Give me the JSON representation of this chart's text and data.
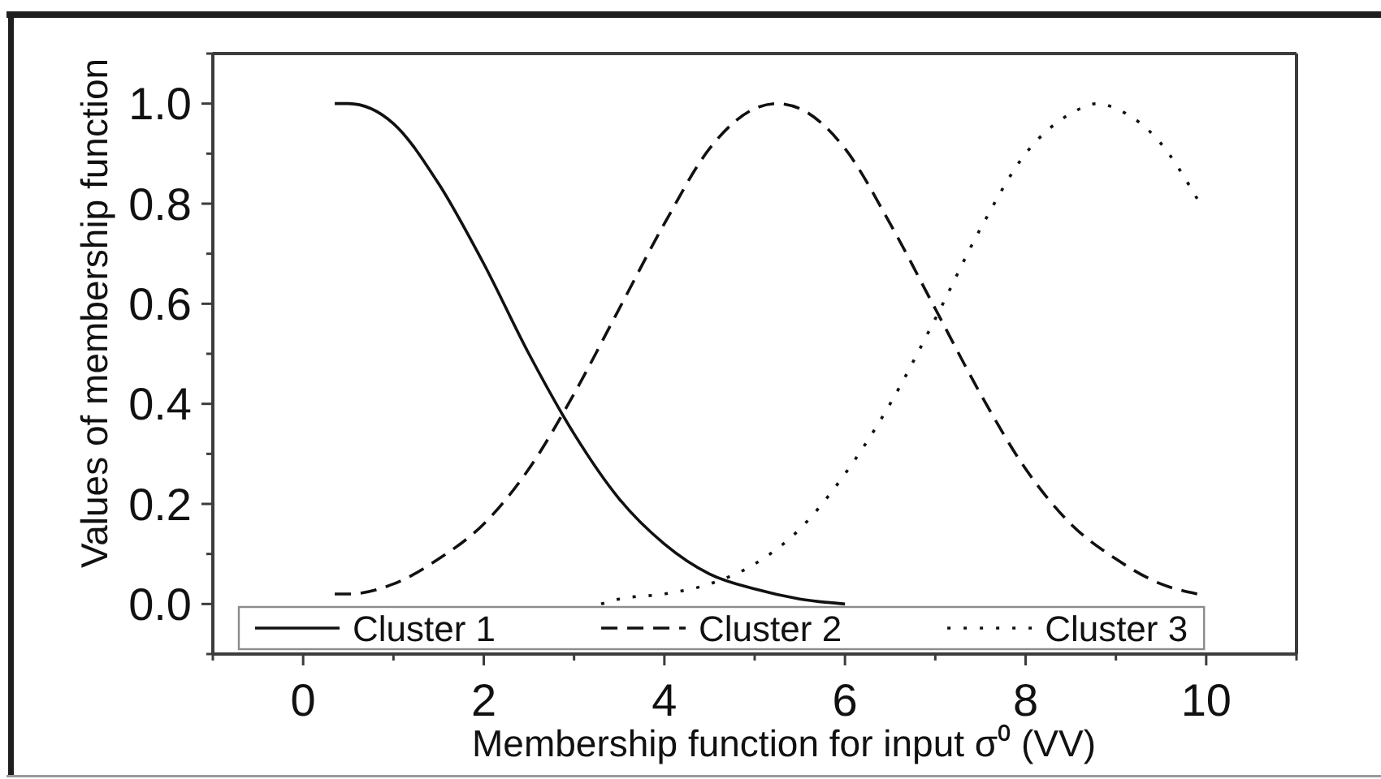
{
  "chart_data": {
    "type": "line",
    "xlabel": "Membership function for input σ⁰ (VV)",
    "ylabel": "Values of membership function",
    "xlim": [
      -1,
      11
    ],
    "xticks": [
      {
        "value": -1,
        "label": null
      },
      0,
      {
        "value": 1,
        "label": null
      },
      2,
      {
        "value": 3,
        "label": null
      },
      4,
      {
        "value": 5,
        "label": null
      },
      6,
      {
        "value": 7,
        "label": null
      },
      8,
      {
        "value": 9,
        "label": null
      },
      10,
      {
        "value": 11,
        "label": null
      }
    ],
    "ylim": [
      -0.1,
      1.1
    ],
    "yticks": [
      {
        "value": -0.1,
        "label": null
      },
      {
        "value": 0,
        "label": "0.0"
      },
      {
        "value": 0.1,
        "label": null
      },
      0.2,
      {
        "value": 0.3,
        "label": null
      },
      0.4,
      {
        "value": 0.5,
        "label": null
      },
      0.6,
      {
        "value": 0.7,
        "label": null
      },
      0.8,
      {
        "value": 0.9,
        "label": null
      },
      {
        "value": 1,
        "label": "1.0"
      },
      {
        "value": 1.1,
        "label": null
      }
    ],
    "legend": "bottom",
    "series": [
      {
        "name": "Cluster 1",
        "color": "#111111",
        "line_style": "solid",
        "x": [
          0.35,
          0.5,
          1,
          1.5,
          2,
          2.5,
          3,
          3.5,
          4,
          4.5,
          5,
          5.5,
          6
        ],
        "values": [
          1.0,
          1.0,
          0.96,
          0.84,
          0.68,
          0.5,
          0.34,
          0.21,
          0.12,
          0.06,
          0.03,
          0.01,
          0.0
        ]
      },
      {
        "name": "Cluster 2",
        "color": "#111111",
        "line_style": "dashed",
        "x": [
          0.35,
          0.5,
          1,
          1.5,
          2,
          2.5,
          3,
          3.5,
          4,
          4.5,
          5,
          5.25,
          5.5,
          6,
          6.5,
          7,
          7.5,
          8,
          8.5,
          9,
          9.5,
          9.9
        ],
        "values": [
          0.02,
          0.02,
          0.04,
          0.09,
          0.16,
          0.27,
          0.42,
          0.59,
          0.76,
          0.91,
          0.99,
          1.0,
          0.99,
          0.91,
          0.76,
          0.59,
          0.42,
          0.27,
          0.16,
          0.09,
          0.04,
          0.02
        ]
      },
      {
        "name": "Cluster 3",
        "color": "#111111",
        "line_style": "dotted",
        "x": [
          3.3,
          3.5,
          4,
          4.5,
          5,
          5.5,
          6,
          6.5,
          7,
          7.5,
          8,
          8.5,
          8.8,
          9,
          9.5,
          9.9
        ],
        "values": [
          0.0,
          0.01,
          0.02,
          0.04,
          0.08,
          0.15,
          0.26,
          0.4,
          0.57,
          0.75,
          0.9,
          0.98,
          1.0,
          0.99,
          0.92,
          0.81
        ]
      }
    ]
  }
}
